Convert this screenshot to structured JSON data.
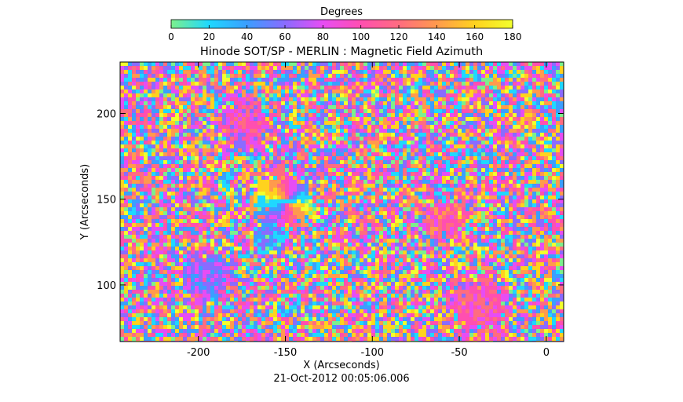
{
  "chart_data": {
    "type": "heatmap",
    "title": "Hinode SOT/SP - MERLIN : Magnetic Field Azimuth",
    "timestamp": "21-Oct-2012 00:05:06.006",
    "xlabel": "X (Arcseconds)",
    "ylabel": "Y (Arcseconds)",
    "xlim": [
      -245,
      10
    ],
    "ylim": [
      67,
      230
    ],
    "xticks": [
      -200,
      -150,
      -100,
      -50,
      0
    ],
    "yticks": [
      100,
      150,
      200
    ],
    "colorbar": {
      "label": "Degrees",
      "range": [
        0,
        180
      ],
      "ticks": [
        0,
        20,
        40,
        60,
        80,
        100,
        120,
        140,
        160,
        180
      ],
      "colormap": [
        "#7cf08c",
        "#1fd8ff",
        "#3b9eff",
        "#8a6bff",
        "#e74df4",
        "#ff4fb0",
        "#ff6c80",
        "#ff9a4d",
        "#ffd21e",
        "#f2ff2e"
      ]
    },
    "grid": false
  }
}
